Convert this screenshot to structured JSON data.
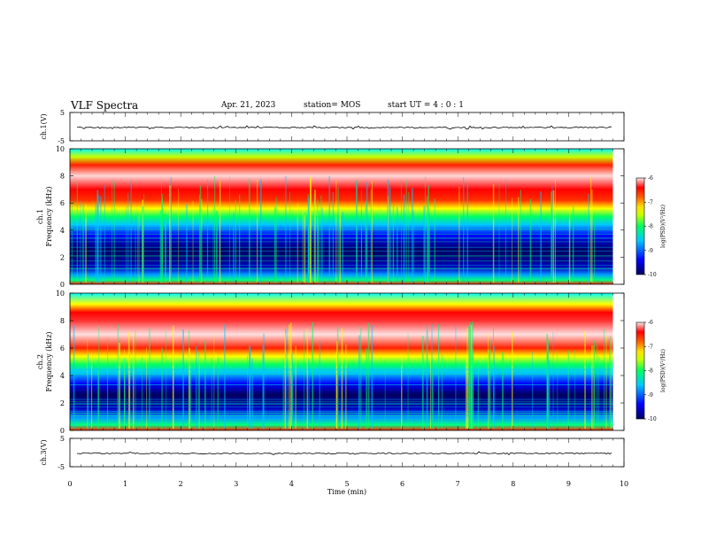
{
  "header": {
    "title": "VLF Spectra",
    "date": "Apr. 21, 2023",
    "station": "station= MOS",
    "start": "start  UT =   4 : 0  : 1"
  },
  "chart_data": [
    {
      "type": "line",
      "ylabel": "ch.1(V)",
      "ylim": [
        -5,
        5
      ],
      "yticks": [
        "5",
        "-5"
      ],
      "series_level": -0.3
    },
    {
      "type": "heatmap",
      "ylabel": "ch.1\nFrequency (kHz)",
      "ylabel_lines": [
        "ch.1",
        "Frequency (kHz)"
      ],
      "ylim": [
        0,
        10
      ],
      "yticks": [
        "0",
        "2",
        "4",
        "6",
        "8",
        "10"
      ],
      "colorbar": {
        "label": "log(PSD)(V²/Hz)",
        "range": [
          -10,
          -6
        ],
        "ticks": [
          "-6",
          "-7",
          "-8",
          "-9",
          "-10"
        ]
      }
    },
    {
      "type": "heatmap",
      "ylabel_lines": [
        "ch.2",
        "Frequency (kHz)"
      ],
      "ylim": [
        0,
        10
      ],
      "yticks": [
        "0",
        "2",
        "4",
        "6",
        "8",
        "10"
      ],
      "colorbar": {
        "label": "log(PSD)(V²/Hz)",
        "range": [
          -10,
          -6
        ],
        "ticks": [
          "-6",
          "-7",
          "-8",
          "-9",
          "-10"
        ]
      }
    },
    {
      "type": "line",
      "ylabel": "ch.3(V)",
      "ylim": [
        -5,
        5
      ],
      "yticks": [
        "5",
        "-5"
      ],
      "series_level": -0.3
    }
  ],
  "x_axis": {
    "label": "Time (min)",
    "range": [
      0,
      10
    ],
    "ticks": [
      "0",
      "1",
      "2",
      "3",
      "4",
      "5",
      "6",
      "7",
      "8",
      "9",
      "10"
    ],
    "data_end": 9.8
  },
  "colors": {
    "spectrum_scale": [
      "#000080",
      "#0000ff",
      "#00c8ff",
      "#00ff80",
      "#b4ff00",
      "#ffff00",
      "#ff8000",
      "#ff0000",
      "#ffffff"
    ]
  }
}
